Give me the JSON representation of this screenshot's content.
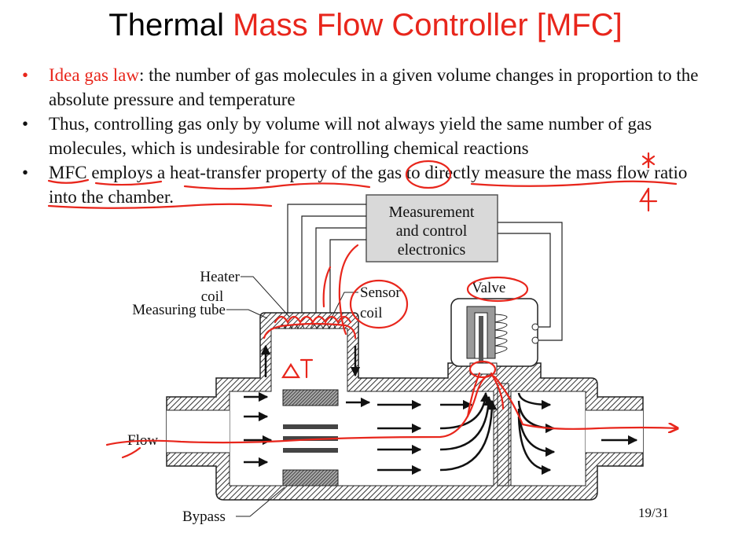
{
  "slide": {
    "title_part1": "Thermal ",
    "title_part2": "Mass Flow Controller [MFC]",
    "accent_color": "#e8261c",
    "annotation_color": "#e8261c"
  },
  "bullets": [
    {
      "marker": "•",
      "lead": "Idea gas law",
      "text": ": the number of gas molecules in a given volume changes in proportion to the absolute pressure and temperature"
    },
    {
      "marker": "•",
      "lead": "",
      "text": "Thus, controlling gas only by volume will not always yield the same number of gas molecules, which is undesirable for controlling chemical reactions"
    },
    {
      "marker": "•",
      "lead": "",
      "text": "MFC employs a heat-transfer property of the gas to directly measure the mass flow ratio into the chamber."
    }
  ],
  "diagram": {
    "box_line1": "Measurement",
    "box_line2": "and control",
    "box_line3": "electronics",
    "heater_line1": "Heater",
    "heater_line2": "coil",
    "measuring_tube": "Measuring tube",
    "sensor_line1": "Sensor",
    "sensor_line2": "coil",
    "valve": "Valve",
    "flow": "Flow",
    "bypass": "Bypass",
    "delta_t_note": "∆T"
  },
  "page_number": "19/31"
}
